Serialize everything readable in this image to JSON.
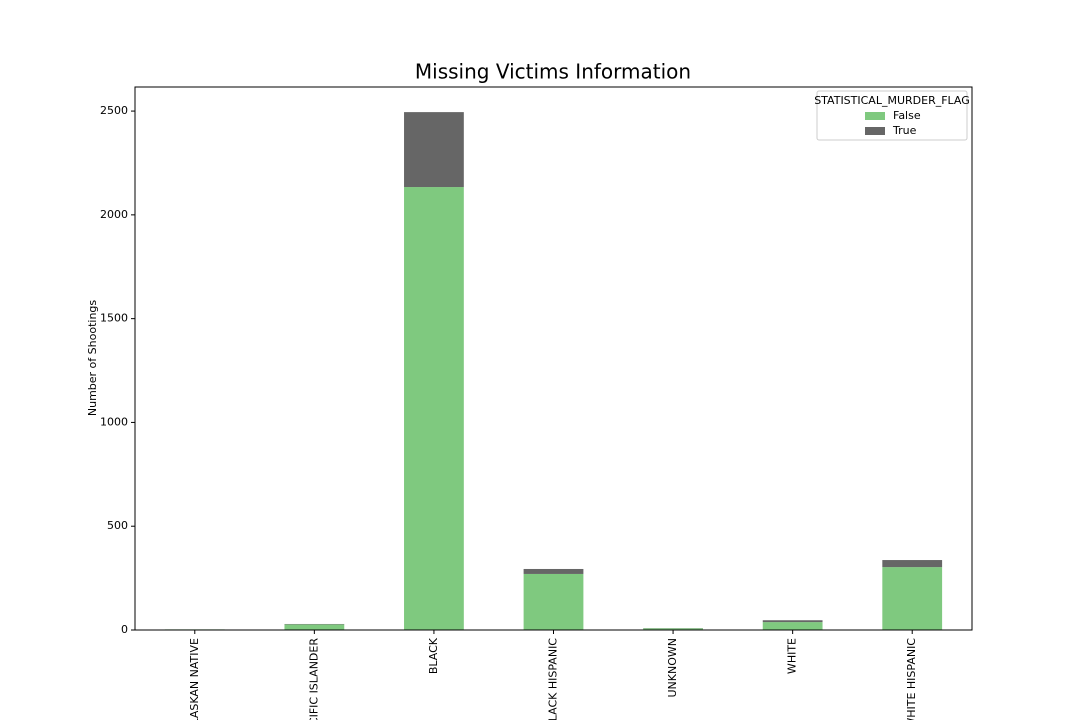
{
  "chart_data": {
    "type": "stacked_bar",
    "title": "Missing Victims Information",
    "y_label": "Number of Shootings",
    "categories": [
      "ALASKAN NATIVE",
      "ACIFIC ISLANDER",
      "BLACK",
      "BLACK HISPANIC",
      "UNKNOWN",
      "WHITE",
      "WHITE HISPANIC"
    ],
    "series": [
      {
        "name": "False",
        "color": "#7fc97f",
        "values": [
          3,
          27,
          2134,
          270,
          8,
          38,
          303
        ]
      },
      {
        "name": "True",
        "color": "#666666",
        "values": [
          0,
          2,
          361,
          24,
          1,
          9,
          34
        ]
      }
    ],
    "ylim": [
      0,
      2616
    ],
    "yticks": [
      0,
      500,
      1000,
      1500,
      2000,
      2500
    ],
    "grid": false,
    "legend_title": "STATISTICAL_MURDER_FLAG",
    "legend_position": "upper-right"
  }
}
